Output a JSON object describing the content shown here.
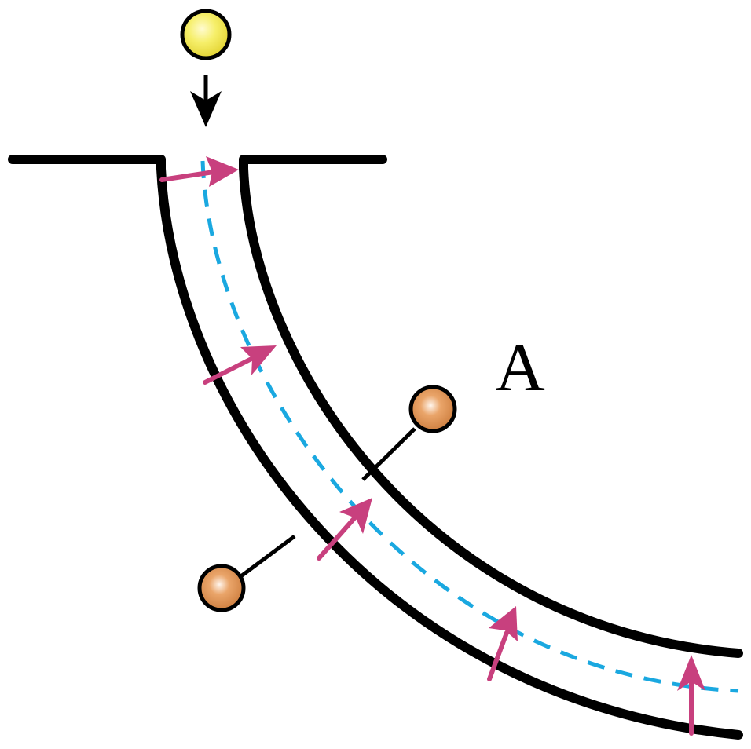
{
  "labels": {
    "region": "A"
  },
  "colors": {
    "tube_wall": "#000000",
    "center_path": "#1aa8e0",
    "force_arrow": "#c8407e",
    "falling_ball": "#f0ea50",
    "sensor_ball": "#d78a48",
    "outline": "#000000"
  },
  "icons": {
    "falling_ball": "yellow-ball-icon",
    "drop_arrow": "down-arrow-icon",
    "sensor_balls": "orange-ball-icon",
    "force_arrows": "magenta-arrow-icon"
  }
}
